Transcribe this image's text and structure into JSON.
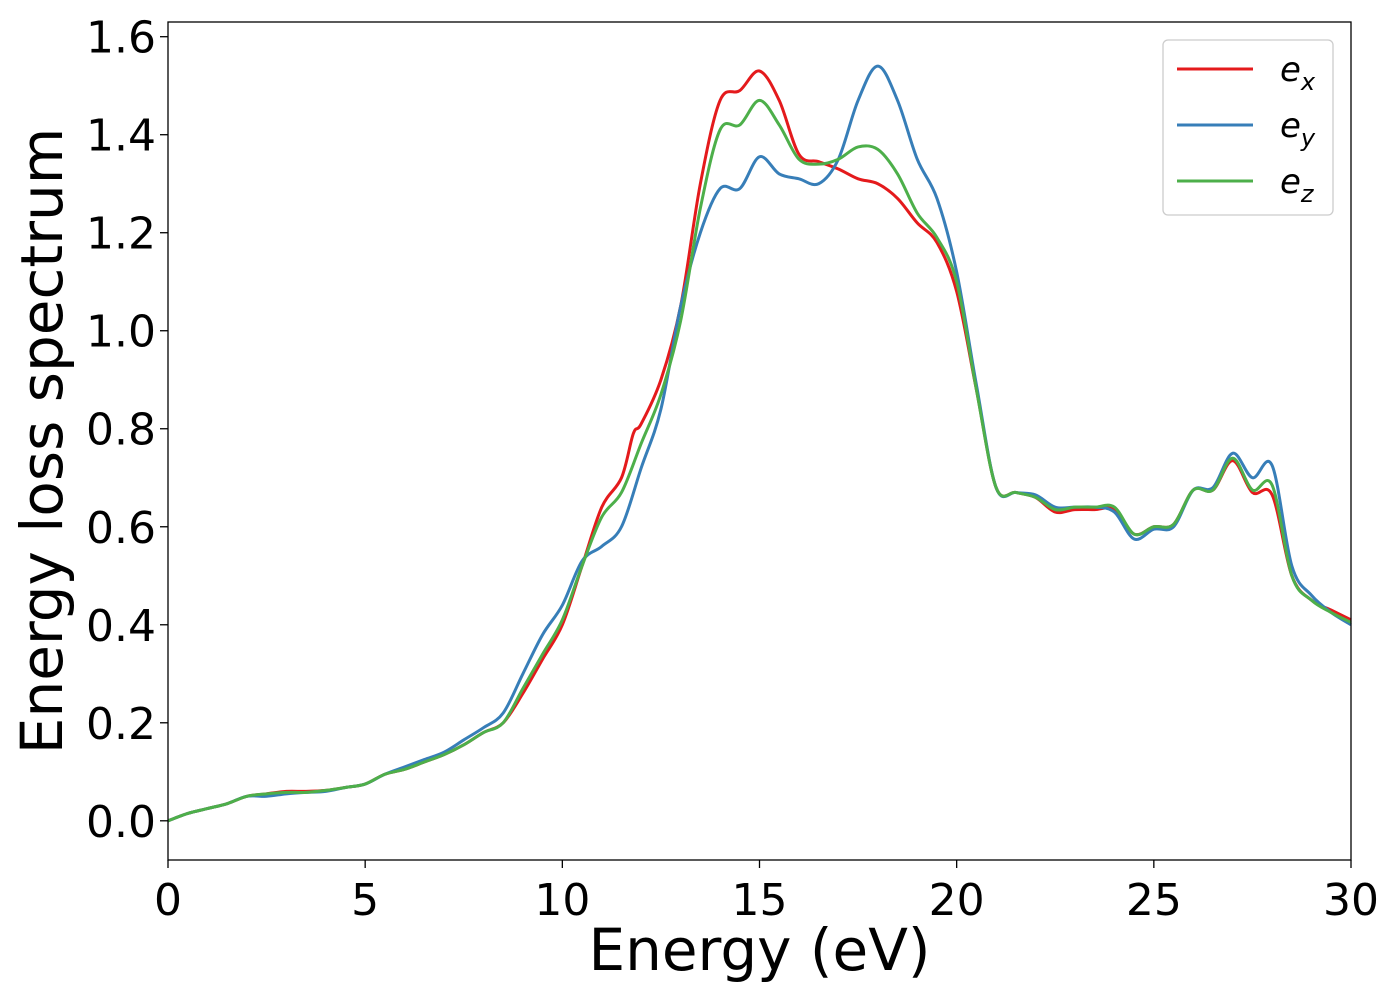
{
  "chart_data": {
    "type": "line",
    "title": "",
    "xlabel": "Energy (eV)",
    "ylabel": "Energy loss spectrum",
    "xlim": [
      0,
      30
    ],
    "ylim": [
      -0.08,
      1.63
    ],
    "xticks": [
      0,
      5,
      10,
      15,
      20,
      25,
      30
    ],
    "yticks": [
      0.0,
      0.2,
      0.4,
      0.6,
      0.8,
      1.0,
      1.2,
      1.4,
      1.6
    ],
    "xtick_labels": [
      "0",
      "5",
      "10",
      "15",
      "20",
      "25",
      "30"
    ],
    "ytick_labels": [
      "0.0",
      "0.2",
      "0.4",
      "0.6",
      "0.8",
      "1.0",
      "1.2",
      "1.4",
      "1.6"
    ],
    "grid": false,
    "legend_position": "top-right",
    "series": [
      {
        "name": "e_x",
        "legend_main": "e",
        "legend_sub": "x",
        "color": "#e41a1c",
        "points": [
          [
            0,
            0.0
          ],
          [
            0.5,
            0.015
          ],
          [
            1,
            0.025
          ],
          [
            1.5,
            0.035
          ],
          [
            2,
            0.05
          ],
          [
            2.5,
            0.055
          ],
          [
            3,
            0.06
          ],
          [
            3.5,
            0.06
          ],
          [
            4,
            0.062
          ],
          [
            4.5,
            0.068
          ],
          [
            5,
            0.075
          ],
          [
            5.5,
            0.095
          ],
          [
            6,
            0.105
          ],
          [
            6.5,
            0.12
          ],
          [
            7,
            0.135
          ],
          [
            7.5,
            0.155
          ],
          [
            8,
            0.18
          ],
          [
            8.5,
            0.2
          ],
          [
            9,
            0.26
          ],
          [
            9.5,
            0.33
          ],
          [
            10,
            0.4
          ],
          [
            10.5,
            0.52
          ],
          [
            11,
            0.64
          ],
          [
            11.5,
            0.7
          ],
          [
            11.8,
            0.79
          ],
          [
            12,
            0.81
          ],
          [
            12.5,
            0.9
          ],
          [
            13,
            1.05
          ],
          [
            13.5,
            1.3
          ],
          [
            14,
            1.47
          ],
          [
            14.5,
            1.49
          ],
          [
            15,
            1.53
          ],
          [
            15.5,
            1.47
          ],
          [
            16,
            1.36
          ],
          [
            16.5,
            1.345
          ],
          [
            17,
            1.33
          ],
          [
            17.5,
            1.31
          ],
          [
            18,
            1.3
          ],
          [
            18.5,
            1.27
          ],
          [
            19,
            1.22
          ],
          [
            19.5,
            1.18
          ],
          [
            20,
            1.08
          ],
          [
            20.5,
            0.88
          ],
          [
            21,
            0.68
          ],
          [
            21.5,
            0.67
          ],
          [
            22,
            0.66
          ],
          [
            22.5,
            0.63
          ],
          [
            23,
            0.635
          ],
          [
            23.5,
            0.635
          ],
          [
            24,
            0.635
          ],
          [
            24.5,
            0.585
          ],
          [
            25,
            0.6
          ],
          [
            25.5,
            0.605
          ],
          [
            26,
            0.675
          ],
          [
            26.5,
            0.675
          ],
          [
            27,
            0.735
          ],
          [
            27.5,
            0.67
          ],
          [
            28,
            0.665
          ],
          [
            28.5,
            0.5
          ],
          [
            29,
            0.45
          ],
          [
            29.5,
            0.43
          ],
          [
            30,
            0.41
          ]
        ]
      },
      {
        "name": "e_y",
        "legend_main": "e",
        "legend_sub": "y",
        "color": "#377eb8",
        "points": [
          [
            0,
            0.0
          ],
          [
            0.5,
            0.015
          ],
          [
            1,
            0.025
          ],
          [
            1.5,
            0.035
          ],
          [
            2,
            0.05
          ],
          [
            2.5,
            0.05
          ],
          [
            3,
            0.055
          ],
          [
            3.5,
            0.058
          ],
          [
            4,
            0.06
          ],
          [
            4.5,
            0.068
          ],
          [
            5,
            0.075
          ],
          [
            5.5,
            0.095
          ],
          [
            6,
            0.11
          ],
          [
            6.5,
            0.125
          ],
          [
            7,
            0.14
          ],
          [
            7.5,
            0.165
          ],
          [
            8,
            0.19
          ],
          [
            8.5,
            0.22
          ],
          [
            9,
            0.3
          ],
          [
            9.5,
            0.38
          ],
          [
            10,
            0.44
          ],
          [
            10.5,
            0.53
          ],
          [
            11,
            0.56
          ],
          [
            11.5,
            0.6
          ],
          [
            12,
            0.72
          ],
          [
            12.5,
            0.84
          ],
          [
            13,
            1.05
          ],
          [
            13.5,
            1.2
          ],
          [
            14,
            1.29
          ],
          [
            14.5,
            1.29
          ],
          [
            15,
            1.355
          ],
          [
            15.5,
            1.32
          ],
          [
            16,
            1.31
          ],
          [
            16.5,
            1.3
          ],
          [
            17,
            1.35
          ],
          [
            17.5,
            1.47
          ],
          [
            18,
            1.54
          ],
          [
            18.5,
            1.47
          ],
          [
            19,
            1.35
          ],
          [
            19.5,
            1.27
          ],
          [
            20,
            1.12
          ],
          [
            20.5,
            0.89
          ],
          [
            21,
            0.68
          ],
          [
            21.5,
            0.67
          ],
          [
            22,
            0.665
          ],
          [
            22.5,
            0.64
          ],
          [
            23,
            0.64
          ],
          [
            23.5,
            0.64
          ],
          [
            24,
            0.63
          ],
          [
            24.5,
            0.575
          ],
          [
            25,
            0.595
          ],
          [
            25.5,
            0.6
          ],
          [
            26,
            0.675
          ],
          [
            26.5,
            0.68
          ],
          [
            27,
            0.75
          ],
          [
            27.5,
            0.7
          ],
          [
            28,
            0.725
          ],
          [
            28.5,
            0.52
          ],
          [
            29,
            0.46
          ],
          [
            29.5,
            0.425
          ],
          [
            30,
            0.4
          ]
        ]
      },
      {
        "name": "e_z",
        "legend_main": "e",
        "legend_sub": "z",
        "color": "#4daf4a",
        "points": [
          [
            0,
            0.0
          ],
          [
            0.5,
            0.015
          ],
          [
            1,
            0.025
          ],
          [
            1.5,
            0.035
          ],
          [
            2,
            0.05
          ],
          [
            2.5,
            0.055
          ],
          [
            3,
            0.058
          ],
          [
            3.5,
            0.058
          ],
          [
            4,
            0.062
          ],
          [
            4.5,
            0.068
          ],
          [
            5,
            0.075
          ],
          [
            5.5,
            0.095
          ],
          [
            6,
            0.105
          ],
          [
            6.5,
            0.12
          ],
          [
            7,
            0.135
          ],
          [
            7.5,
            0.155
          ],
          [
            8,
            0.18
          ],
          [
            8.5,
            0.2
          ],
          [
            9,
            0.27
          ],
          [
            9.5,
            0.34
          ],
          [
            10,
            0.41
          ],
          [
            10.5,
            0.52
          ],
          [
            11,
            0.62
          ],
          [
            11.5,
            0.67
          ],
          [
            12,
            0.77
          ],
          [
            12.5,
            0.87
          ],
          [
            13,
            1.02
          ],
          [
            13.5,
            1.25
          ],
          [
            14,
            1.41
          ],
          [
            14.5,
            1.42
          ],
          [
            15,
            1.47
          ],
          [
            15.5,
            1.42
          ],
          [
            16,
            1.35
          ],
          [
            16.5,
            1.34
          ],
          [
            17,
            1.35
          ],
          [
            17.5,
            1.375
          ],
          [
            18,
            1.37
          ],
          [
            18.5,
            1.32
          ],
          [
            19,
            1.24
          ],
          [
            19.5,
            1.19
          ],
          [
            20,
            1.1
          ],
          [
            20.5,
            0.88
          ],
          [
            21,
            0.68
          ],
          [
            21.5,
            0.67
          ],
          [
            22,
            0.66
          ],
          [
            22.5,
            0.635
          ],
          [
            23,
            0.64
          ],
          [
            23.5,
            0.64
          ],
          [
            24,
            0.64
          ],
          [
            24.5,
            0.585
          ],
          [
            25,
            0.6
          ],
          [
            25.5,
            0.605
          ],
          [
            26,
            0.675
          ],
          [
            26.5,
            0.675
          ],
          [
            27,
            0.74
          ],
          [
            27.5,
            0.675
          ],
          [
            28,
            0.685
          ],
          [
            28.5,
            0.5
          ],
          [
            29,
            0.45
          ],
          [
            29.5,
            0.425
          ],
          [
            30,
            0.405
          ]
        ]
      }
    ]
  }
}
